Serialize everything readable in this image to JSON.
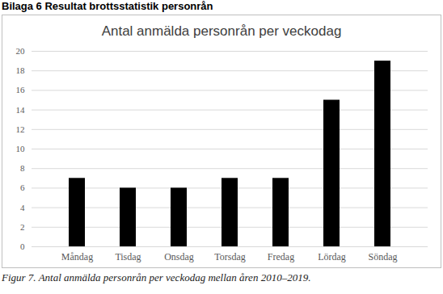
{
  "chart_data": {
    "type": "bar",
    "heading": "Bilaga 6 Resultat brottsstatistik personrån",
    "title": "Antal anmälda personrån per veckodag",
    "caption": "Figur 7. Antal anmälda personrån per veckodag mellan åren 2010–2019.",
    "categories": [
      "Måndag",
      "Tisdag",
      "Onsdag",
      "Torsdag",
      "Fredag",
      "Lördag",
      "Söndag"
    ],
    "values": [
      7,
      6,
      6,
      7,
      7,
      15,
      19
    ],
    "color": "#000000",
    "ylim": [
      0,
      20
    ],
    "yticks": [
      0,
      2,
      4,
      6,
      8,
      10,
      12,
      14,
      16,
      18,
      20
    ],
    "grid": true
  }
}
